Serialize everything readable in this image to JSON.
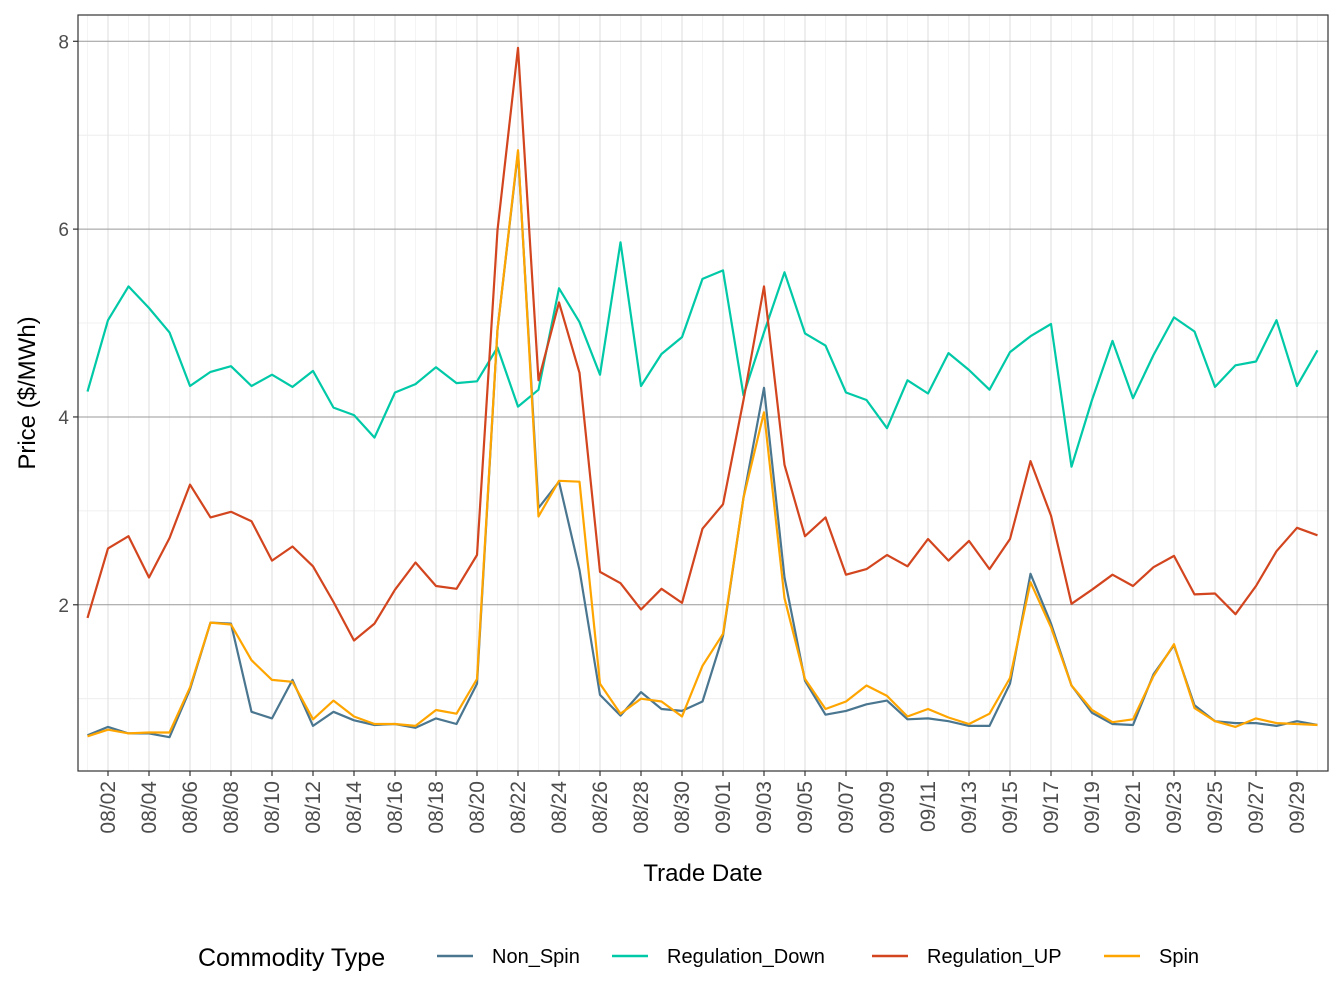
{
  "chart_data": {
    "type": "line",
    "title": "",
    "xlabel": "Trade Date",
    "ylabel": "Price ($/MWh)",
    "ylim": [
      0.23,
      8.28
    ],
    "yticks": [
      2,
      4,
      6,
      8
    ],
    "x": [
      "08/01",
      "08/02",
      "08/03",
      "08/04",
      "08/05",
      "08/06",
      "08/07",
      "08/08",
      "08/09",
      "08/10",
      "08/11",
      "08/12",
      "08/13",
      "08/14",
      "08/15",
      "08/16",
      "08/17",
      "08/18",
      "08/19",
      "08/20",
      "08/21",
      "08/22",
      "08/23",
      "08/24",
      "08/25",
      "08/26",
      "08/27",
      "08/28",
      "08/29",
      "08/30",
      "08/31",
      "09/01",
      "09/02",
      "09/03",
      "09/04",
      "09/05",
      "09/06",
      "09/07",
      "09/08",
      "09/09",
      "09/10",
      "09/11",
      "09/12",
      "09/13",
      "09/14",
      "09/15",
      "09/16",
      "09/17",
      "09/18",
      "09/19",
      "09/20",
      "09/21",
      "09/22",
      "09/23",
      "09/24",
      "09/25",
      "09/26",
      "09/27",
      "09/28",
      "09/29",
      "09/30"
    ],
    "xtick_labels": [
      "08/02",
      "08/04",
      "08/06",
      "08/08",
      "08/10",
      "08/12",
      "08/14",
      "08/16",
      "08/18",
      "08/20",
      "08/22",
      "08/24",
      "08/26",
      "08/28",
      "08/30",
      "09/01",
      "09/03",
      "09/05",
      "09/07",
      "09/09",
      "09/11",
      "09/13",
      "09/15",
      "09/17",
      "09/19",
      "09/21",
      "09/23",
      "09/25",
      "09/27",
      "09/29"
    ],
    "grid": true,
    "legend": {
      "title": "Commodity Type",
      "position": "bottom"
    },
    "series": [
      {
        "name": "Non_Spin",
        "color": "#4A7690",
        "values": [
          0.61,
          0.7,
          0.63,
          0.63,
          0.59,
          1.1,
          1.81,
          1.8,
          0.86,
          0.79,
          1.2,
          0.71,
          0.86,
          0.77,
          0.72,
          0.73,
          0.69,
          0.79,
          0.73,
          1.16,
          4.93,
          6.82,
          3.03,
          3.31,
          2.37,
          1.04,
          0.82,
          1.07,
          0.89,
          0.87,
          0.97,
          1.67,
          3.14,
          4.31,
          2.29,
          1.19,
          0.83,
          0.87,
          0.94,
          0.98,
          0.78,
          0.79,
          0.76,
          0.71,
          0.71,
          1.16,
          2.33,
          1.8,
          1.14,
          0.85,
          0.73,
          0.72,
          1.26,
          1.57,
          0.93,
          0.76,
          0.74,
          0.74,
          0.71,
          0.76,
          0.72
        ]
      },
      {
        "name": "Regulation_Down",
        "color": "#00C9A7",
        "values": [
          4.27,
          5.03,
          5.39,
          5.16,
          4.9,
          4.33,
          4.48,
          4.54,
          4.33,
          4.45,
          4.32,
          4.49,
          4.1,
          4.02,
          3.78,
          4.26,
          4.35,
          4.53,
          4.36,
          4.38,
          4.74,
          4.11,
          4.29,
          5.37,
          5.01,
          4.45,
          5.86,
          4.33,
          4.67,
          4.85,
          5.47,
          5.56,
          4.23,
          4.9,
          5.54,
          4.89,
          4.76,
          4.26,
          4.18,
          3.88,
          4.39,
          4.25,
          4.68,
          4.5,
          4.29,
          4.69,
          4.86,
          4.99,
          3.47,
          4.18,
          4.81,
          4.2,
          4.66,
          5.06,
          4.91,
          4.32,
          4.55,
          4.59,
          5.03,
          4.33,
          4.71
        ]
      },
      {
        "name": "Regulation_UP",
        "color": "#D2451E",
        "values": [
          1.86,
          2.6,
          2.73,
          2.29,
          2.71,
          3.28,
          2.93,
          2.99,
          2.89,
          2.47,
          2.62,
          2.41,
          2.03,
          1.62,
          1.8,
          2.16,
          2.45,
          2.2,
          2.17,
          2.53,
          5.99,
          7.93,
          4.39,
          5.22,
          4.47,
          2.35,
          2.23,
          1.95,
          2.17,
          2.02,
          2.81,
          3.07,
          4.18,
          5.39,
          3.49,
          2.73,
          2.93,
          2.32,
          2.38,
          2.53,
          2.41,
          2.7,
          2.47,
          2.68,
          2.38,
          2.7,
          3.53,
          2.95,
          2.01,
          2.16,
          2.32,
          2.2,
          2.4,
          2.52,
          2.11,
          2.12,
          1.9,
          2.2,
          2.57,
          2.82,
          2.74
        ]
      },
      {
        "name": "Spin",
        "color": "#FFA500",
        "values": [
          0.6,
          0.67,
          0.63,
          0.64,
          0.64,
          1.12,
          1.81,
          1.79,
          1.41,
          1.2,
          1.18,
          0.78,
          0.98,
          0.81,
          0.73,
          0.73,
          0.71,
          0.88,
          0.84,
          1.21,
          4.93,
          6.84,
          2.94,
          3.32,
          3.31,
          1.16,
          0.84,
          1.0,
          0.97,
          0.81,
          1.35,
          1.69,
          3.14,
          4.05,
          2.07,
          1.21,
          0.89,
          0.97,
          1.14,
          1.03,
          0.81,
          0.89,
          0.8,
          0.73,
          0.84,
          1.22,
          2.24,
          1.76,
          1.14,
          0.88,
          0.75,
          0.78,
          1.24,
          1.58,
          0.9,
          0.76,
          0.7,
          0.79,
          0.74,
          0.73,
          0.72
        ]
      }
    ]
  }
}
